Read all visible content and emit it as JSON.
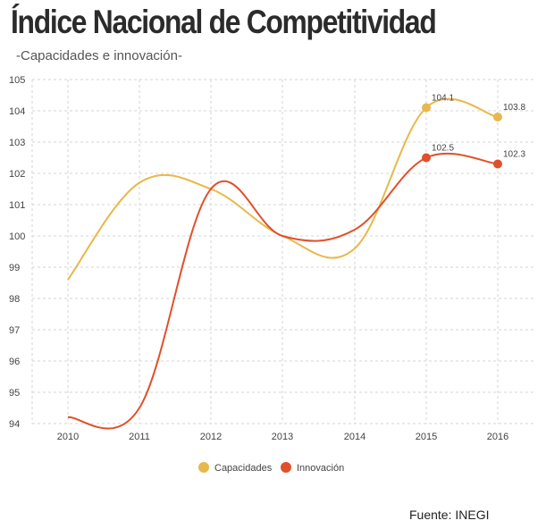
{
  "header": {
    "title": "Índice Nacional de Competitividad",
    "subtitle": "-Capacidades e innovación-"
  },
  "source": "Fuente: INEGI",
  "chart_data": {
    "type": "line",
    "x": [
      "2010",
      "2011",
      "2012",
      "2013",
      "2014",
      "2015",
      "2016"
    ],
    "ylim": [
      94,
      105
    ],
    "yticks": [
      94,
      95,
      96,
      97,
      98,
      99,
      100,
      101,
      102,
      103,
      104,
      105
    ],
    "grid": true,
    "legend_position": "bottom-center",
    "series": [
      {
        "name": "Capacidades",
        "color": "#e8b84b",
        "values": [
          98.6,
          101.7,
          101.5,
          100.0,
          99.6,
          104.1,
          103.8
        ],
        "labels": {
          "5": "104.1",
          "6": "103.8"
        }
      },
      {
        "name": "Innovación",
        "color": "#e0502a",
        "values": [
          94.2,
          94.5,
          101.5,
          100.0,
          100.2,
          102.5,
          102.3
        ],
        "labels": {
          "5": "102.5",
          "6": "102.3"
        }
      }
    ]
  }
}
